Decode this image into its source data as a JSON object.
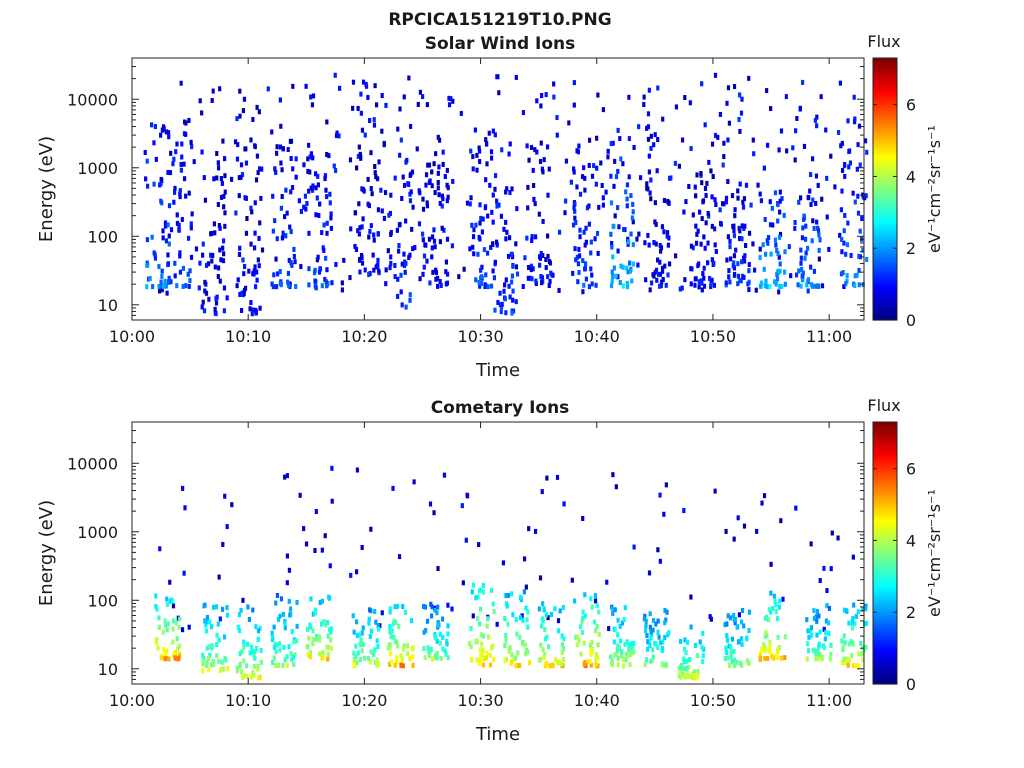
{
  "figure_title": "RPCICA151219T10.PNG",
  "chart_data": [
    {
      "type": "heatmap",
      "title": "Solar Wind Ions",
      "xlabel": "Time",
      "ylabel": "Energy (eV)",
      "y_scale": "log",
      "xlim": [
        "10:00",
        "11:03"
      ],
      "ylim": [
        6,
        40000
      ],
      "x_ticks": [
        "10:00",
        "10:10",
        "10:20",
        "10:30",
        "10:40",
        "10:50",
        "11:00"
      ],
      "y_ticks": [
        10,
        100,
        1000,
        10000
      ],
      "y_tick_labels": [
        "10",
        "100",
        "1000",
        "10000"
      ],
      "colorbar": {
        "title": "Flux",
        "label": "eV⁻¹cm⁻²sr⁻¹s⁻¹",
        "range": [
          0,
          7.3
        ],
        "ticks": [
          0,
          2,
          4,
          6
        ],
        "tick_labels": [
          "0",
          "2",
          "4",
          "6"
        ],
        "colormap": "jet"
      },
      "clusters": [
        {
          "t": "10:02",
          "e_low": 20,
          "e_high": 6000,
          "level": 2.0
        },
        {
          "t": "10:04",
          "e_low": 20,
          "e_high": 4000,
          "level": 1.5
        },
        {
          "t": "10:07",
          "e_low": 8,
          "e_high": 3000,
          "level": 1.0
        },
        {
          "t": "10:10",
          "e_low": 8,
          "e_high": 3000,
          "level": 1.0
        },
        {
          "t": "10:13",
          "e_low": 20,
          "e_high": 3000,
          "level": 1.5
        },
        {
          "t": "10:16",
          "e_low": 20,
          "e_high": 2000,
          "level": 1.5
        },
        {
          "t": "10:20",
          "e_low": 30,
          "e_high": 2000,
          "level": 1.0
        },
        {
          "t": "10:23",
          "e_low": 10,
          "e_high": 2000,
          "level": 1.5
        },
        {
          "t": "10:26",
          "e_low": 20,
          "e_high": 1500,
          "level": 1.0
        },
        {
          "t": "10:30",
          "e_low": 20,
          "e_high": 3000,
          "level": 1.5
        },
        {
          "t": "10:32",
          "e_low": 8,
          "e_high": 800,
          "level": 1.5
        },
        {
          "t": "10:35",
          "e_low": 20,
          "e_high": 3000,
          "level": 1.0
        },
        {
          "t": "10:39",
          "e_low": 20,
          "e_high": 3000,
          "level": 1.5
        },
        {
          "t": "10:42",
          "e_low": 20,
          "e_high": 3000,
          "level": 2.5
        },
        {
          "t": "10:45",
          "e_low": 20,
          "e_high": 1000,
          "level": 1.0
        },
        {
          "t": "10:49",
          "e_low": 20,
          "e_high": 1000,
          "level": 1.0
        },
        {
          "t": "10:52",
          "e_low": 20,
          "e_high": 800,
          "level": 1.5
        },
        {
          "t": "10:55",
          "e_low": 20,
          "e_high": 500,
          "level": 2.5
        },
        {
          "t": "10:58",
          "e_low": 20,
          "e_high": 1000,
          "level": 2.0
        },
        {
          "t": "11:02",
          "e_low": 20,
          "e_high": 3000,
          "level": 2.0
        }
      ]
    },
    {
      "type": "heatmap",
      "title": "Cometary Ions",
      "xlabel": "Time",
      "ylabel": "Energy (eV)",
      "y_scale": "log",
      "xlim": [
        "10:00",
        "11:03"
      ],
      "ylim": [
        6,
        40000
      ],
      "x_ticks": [
        "10:00",
        "10:10",
        "10:20",
        "10:30",
        "10:40",
        "10:50",
        "11:00"
      ],
      "y_ticks": [
        10,
        100,
        1000,
        10000
      ],
      "y_tick_labels": [
        "10",
        "100",
        "1000",
        "10000"
      ],
      "colorbar": {
        "title": "Flux",
        "label": "eV⁻¹cm⁻²sr⁻¹s⁻¹",
        "range": [
          0,
          7.3
        ],
        "ticks": [
          0,
          2,
          4,
          6
        ],
        "tick_labels": [
          "0",
          "2",
          "4",
          "6"
        ],
        "colormap": "jet"
      },
      "clusters": [
        {
          "t": "10:03",
          "e_low": 15,
          "e_high": 150,
          "level": 5.5
        },
        {
          "t": "10:07",
          "e_low": 10,
          "e_high": 100,
          "level": 4.5
        },
        {
          "t": "10:10",
          "e_low": 8,
          "e_high": 100,
          "level": 4.5
        },
        {
          "t": "10:13",
          "e_low": 12,
          "e_high": 150,
          "level": 4.0
        },
        {
          "t": "10:16",
          "e_low": 15,
          "e_high": 150,
          "level": 5.0
        },
        {
          "t": "10:20",
          "e_low": 12,
          "e_high": 80,
          "level": 4.5
        },
        {
          "t": "10:23",
          "e_low": 12,
          "e_high": 100,
          "level": 5.5
        },
        {
          "t": "10:26",
          "e_low": 15,
          "e_high": 100,
          "level": 4.0
        },
        {
          "t": "10:30",
          "e_low": 12,
          "e_high": 200,
          "level": 5.5
        },
        {
          "t": "10:33",
          "e_low": 12,
          "e_high": 150,
          "level": 5.0
        },
        {
          "t": "10:36",
          "e_low": 12,
          "e_high": 100,
          "level": 5.0
        },
        {
          "t": "10:39",
          "e_low": 12,
          "e_high": 150,
          "level": 5.5
        },
        {
          "t": "10:42",
          "e_low": 12,
          "e_high": 100,
          "level": 4.5
        },
        {
          "t": "10:45",
          "e_low": 12,
          "e_high": 80,
          "level": 4.0
        },
        {
          "t": "10:48",
          "e_low": 8,
          "e_high": 60,
          "level": 4.5
        },
        {
          "t": "10:52",
          "e_low": 12,
          "e_high": 80,
          "level": 4.0
        },
        {
          "t": "10:55",
          "e_low": 15,
          "e_high": 150,
          "level": 5.5
        },
        {
          "t": "10:59",
          "e_low": 15,
          "e_high": 100,
          "level": 4.0
        },
        {
          "t": "11:02",
          "e_low": 12,
          "e_high": 100,
          "level": 5.0
        }
      ]
    }
  ]
}
